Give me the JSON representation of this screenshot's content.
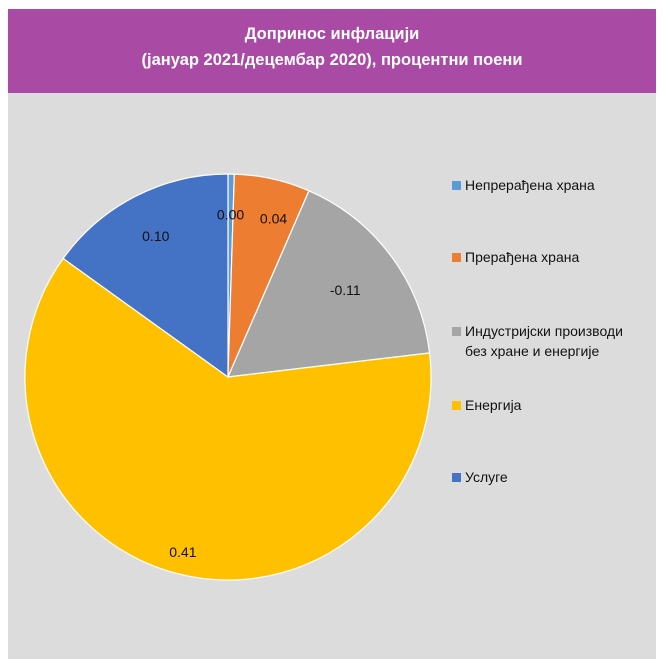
{
  "title_line1": "Допринос инфлацији",
  "title_line2": "(јануар 2021/децембар 2020), процентни поени",
  "chart_data": {
    "type": "pie",
    "title": "Допринос инфлацији (јануар 2021/децембар 2020), процентни поени",
    "legend_position": "right",
    "slices": [
      {
        "name": "Непрерађена храна",
        "value": 0.0,
        "label": "0.00",
        "color": "#5b9bd5"
      },
      {
        "name": "Прерађена храна",
        "value": 0.04,
        "label": "0.04",
        "color": "#ed7d31"
      },
      {
        "name": "Индустријски производи без хране и енергије",
        "value": -0.11,
        "label": "-0.11",
        "color": "#a5a5a5"
      },
      {
        "name": "Енергија",
        "value": 0.41,
        "label": "0.41",
        "color": "#ffc000"
      },
      {
        "name": "Услуге",
        "value": 0.1,
        "label": "0.10",
        "color": "#4472c4"
      }
    ]
  }
}
